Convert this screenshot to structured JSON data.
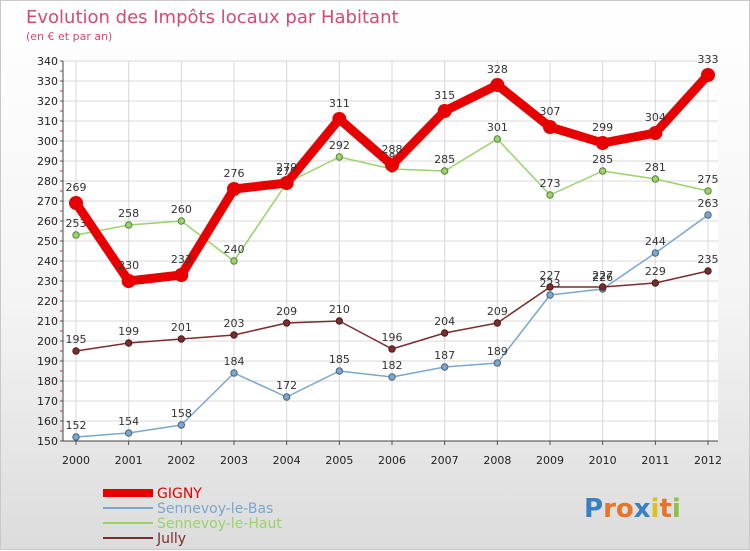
{
  "chart_data": {
    "type": "line",
    "title": "Evolution des Impôts locaux par Habitant",
    "subtitle": "(en € et par an)",
    "xlabel": "",
    "ylabel": "",
    "categories": [
      "2000",
      "2001",
      "2002",
      "2003",
      "2004",
      "2005",
      "2006",
      "2007",
      "2008",
      "2009",
      "2010",
      "2011",
      "2012"
    ],
    "ylim": [
      150,
      340
    ],
    "yticks": [
      150,
      160,
      170,
      180,
      190,
      200,
      210,
      220,
      230,
      240,
      250,
      260,
      270,
      280,
      290,
      300,
      310,
      320,
      330,
      340
    ],
    "grid": true,
    "legend_position": "bottom-left",
    "series": [
      {
        "name": "Sennevoy-le-Bas",
        "color": "#7ba7cf",
        "values": [
          152,
          154,
          158,
          184,
          172,
          185,
          182,
          187,
          189,
          223,
          226,
          244,
          263
        ]
      },
      {
        "name": "Sennevoy-le-Haut",
        "color": "#99d36a",
        "values": [
          253,
          258,
          260,
          240,
          279,
          292,
          286,
          285,
          301,
          273,
          285,
          281,
          275
        ]
      },
      {
        "name": "Jully",
        "color": "#7a2d2d",
        "values": [
          195,
          199,
          201,
          203,
          209,
          210,
          196,
          204,
          209,
          227,
          227,
          229,
          235
        ]
      },
      {
        "name": "GIGNY",
        "color": "#e60000",
        "values": [
          269,
          230,
          233,
          276,
          279,
          311,
          288,
          315,
          328,
          307,
          299,
          304,
          333
        ]
      }
    ],
    "legend_order": [
      "GIGNY",
      "Sennevoy-le-Bas",
      "Sennevoy-le-Haut",
      "Jully"
    ]
  },
  "branding": {
    "logo_text": "Proxiti",
    "letter_colors": [
      "#3a7fc1",
      "#e8742a",
      "#e8742a",
      "#3a7fc1",
      "#d9c21a",
      "#e8742a",
      "#8bc34a"
    ]
  }
}
